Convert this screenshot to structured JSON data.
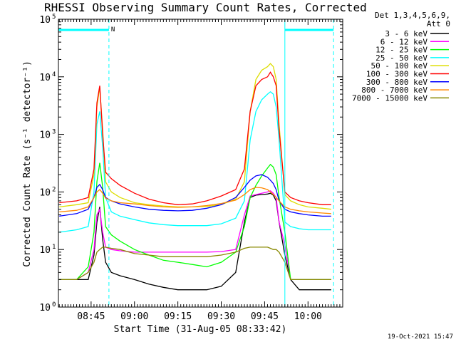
{
  "chart_data": {
    "type": "line",
    "title": "RHESSI Observing Summary Count Rates, Corrected",
    "xlabel": "Start Time (31-Aug-05 08:33:42)",
    "ylabel": "Corrected Count Rate (s⁻¹ detector⁻¹)",
    "y_scale": "log",
    "ylim": [
      1,
      100000
    ],
    "xlim": [
      "08:33:42",
      "10:12:00"
    ],
    "grid": false,
    "legend_position": "right",
    "x_ticks": [
      "08:45",
      "09:00",
      "09:15",
      "09:30",
      "09:45",
      "10:00"
    ],
    "y_ticks": [
      {
        "mantissa": "10",
        "exp": "0",
        "value": 1
      },
      {
        "mantissa": "10",
        "exp": "1",
        "value": 10
      },
      {
        "mantissa": "10",
        "exp": "2",
        "value": 100
      },
      {
        "mantissa": "10",
        "exp": "3",
        "value": 1000
      },
      {
        "mantissa": "10",
        "exp": "4",
        "value": 10000
      },
      {
        "mantissa": "10",
        "exp": "5",
        "value": 100000
      }
    ],
    "legend_header": [
      "Det 1,3,4,5,6,9,",
      "Att 0"
    ],
    "timestamp": "19-Oct-2021 15:47",
    "annotation_N": "N",
    "x": [
      "08:34",
      "08:40",
      "08:44",
      "08:46",
      "08:47",
      "08:48",
      "08:49",
      "08:50",
      "08:52",
      "08:55",
      "09:00",
      "09:05",
      "09:10",
      "09:15",
      "09:20",
      "09:25",
      "09:30",
      "09:35",
      "09:38",
      "09:40",
      "09:42",
      "09:44",
      "09:46",
      "09:47",
      "09:48",
      "09:49",
      "09:50",
      "09:52",
      "09:54",
      "09:57",
      "10:00",
      "10:05",
      "10:08"
    ],
    "series": [
      {
        "name": "3 - 6 keV",
        "color": "#000000",
        "values": [
          3,
          3,
          3,
          8,
          30,
          55,
          15,
          6,
          4,
          3.5,
          3,
          2.5,
          2.2,
          2,
          2,
          2,
          2.3,
          4,
          30,
          80,
          88,
          90,
          92,
          95,
          88,
          70,
          30,
          8,
          3,
          2,
          2,
          2,
          2
        ]
      },
      {
        "name": "6 - 12 keV",
        "color": "#ff00ff",
        "values": [
          3,
          3,
          4,
          10,
          40,
          50,
          20,
          11,
          10,
          9.5,
          9,
          9,
          9,
          9,
          9,
          9,
          9.2,
          10,
          40,
          85,
          90,
          95,
          100,
          105,
          95,
          80,
          30,
          12,
          3,
          3,
          3,
          3,
          3
        ]
      },
      {
        "name": "12 - 25 keV",
        "color": "#00ff00",
        "values": [
          3,
          3,
          5,
          20,
          150,
          320,
          120,
          25,
          18,
          14,
          10,
          8,
          6.5,
          6,
          5.5,
          5,
          6,
          9,
          25,
          80,
          130,
          190,
          260,
          300,
          270,
          200,
          80,
          20,
          3,
          3,
          3,
          3,
          3
        ]
      },
      {
        "name": "25 - 50 keV",
        "color": "#00ffff",
        "values": [
          20,
          22,
          25,
          100,
          1500,
          2500,
          600,
          80,
          45,
          38,
          33,
          29,
          27,
          26,
          26,
          26,
          28,
          35,
          70,
          800,
          2500,
          4000,
          5000,
          5500,
          5000,
          3000,
          800,
          30,
          25,
          23,
          22,
          22,
          22
        ]
      },
      {
        "name": "50 - 100 keV",
        "color": "#dddd00",
        "values": [
          55,
          60,
          65,
          200,
          3000,
          6500,
          1200,
          150,
          100,
          80,
          65,
          60,
          57,
          55,
          55,
          56,
          60,
          75,
          150,
          2500,
          9000,
          13000,
          15000,
          17000,
          15000,
          9000,
          1500,
          90,
          70,
          60,
          55,
          52,
          50
        ]
      },
      {
        "name": "100 - 300 keV",
        "color": "#ff0000",
        "values": [
          65,
          70,
          80,
          250,
          3500,
          7000,
          1000,
          220,
          170,
          130,
          95,
          75,
          65,
          60,
          62,
          70,
          85,
          110,
          250,
          2500,
          7000,
          9000,
          10000,
          12000,
          10000,
          7000,
          1200,
          100,
          80,
          70,
          65,
          60,
          60
        ]
      },
      {
        "name": "300 - 800 keV",
        "color": "#0000ff",
        "values": [
          38,
          42,
          50,
          80,
          120,
          135,
          110,
          80,
          70,
          62,
          55,
          50,
          48,
          47,
          48,
          52,
          60,
          80,
          120,
          160,
          190,
          200,
          180,
          160,
          140,
          110,
          70,
          50,
          45,
          42,
          40,
          38,
          38
        ]
      },
      {
        "name": "800 - 7000 keV",
        "color": "#ff8800",
        "values": [
          45,
          48,
          55,
          80,
          100,
          110,
          95,
          78,
          70,
          65,
          62,
          58,
          55,
          54,
          55,
          58,
          63,
          72,
          90,
          110,
          120,
          118,
          110,
          100,
          90,
          80,
          70,
          55,
          50,
          47,
          45,
          43,
          42
        ]
      },
      {
        "name": "7000 - 15000 keV",
        "color": "#888800",
        "values": [
          3,
          3,
          4,
          6,
          9,
          10,
          11,
          11,
          10.5,
          10,
          8.5,
          8,
          7.5,
          7.5,
          7.5,
          7.5,
          8,
          9,
          10.5,
          11,
          11,
          11,
          11,
          10.5,
          10,
          10,
          9,
          6,
          3,
          3,
          3,
          3,
          3
        ]
      }
    ],
    "vertical_markers": [
      "08:51:10",
      "09:52:00",
      "10:08:50"
    ],
    "night_bars": [
      [
        "08:33:42",
        "08:51:10"
      ],
      [
        "09:52:00",
        "10:08:50"
      ]
    ]
  }
}
